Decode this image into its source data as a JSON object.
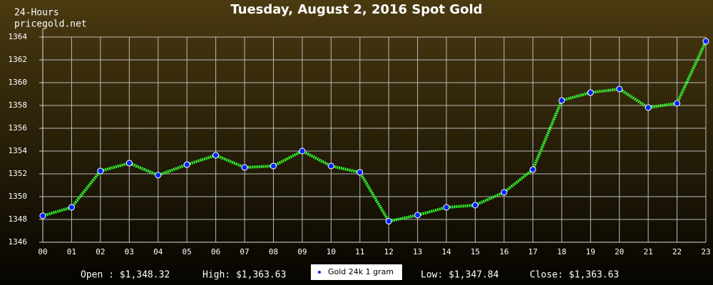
{
  "chart_data": {
    "type": "line",
    "title": "Tuesday, August 2, 2016 Spot Gold",
    "subtitle": [
      "24-Hours",
      "pricegold.net"
    ],
    "categories": [
      "00",
      "01",
      "02",
      "03",
      "04",
      "05",
      "06",
      "07",
      "08",
      "09",
      "10",
      "11",
      "12",
      "13",
      "14",
      "15",
      "16",
      "17",
      "18",
      "19",
      "20",
      "21",
      "22",
      "23"
    ],
    "series": [
      {
        "name": "Gold 24k 1 gram",
        "color": "#33ff33",
        "marker_color": "#0022ff",
        "values": [
          1348.32,
          1349.06,
          1352.25,
          1352.94,
          1351.88,
          1352.81,
          1353.63,
          1352.56,
          1352.69,
          1354.0,
          1352.69,
          1352.13,
          1347.84,
          1348.38,
          1349.06,
          1349.25,
          1350.38,
          1352.38,
          1358.44,
          1359.13,
          1359.44,
          1357.81,
          1358.19,
          1363.63
        ]
      }
    ],
    "ylim": [
      1346,
      1364
    ],
    "yticks": [
      1346,
      1348,
      1350,
      1352,
      1354,
      1356,
      1358,
      1360,
      1362,
      1364
    ],
    "grid": true,
    "stats": [
      "Open : $1,348.32",
      "High: $1,363.63",
      "Low: $1,347.84",
      "Close: $1,363.63"
    ]
  }
}
